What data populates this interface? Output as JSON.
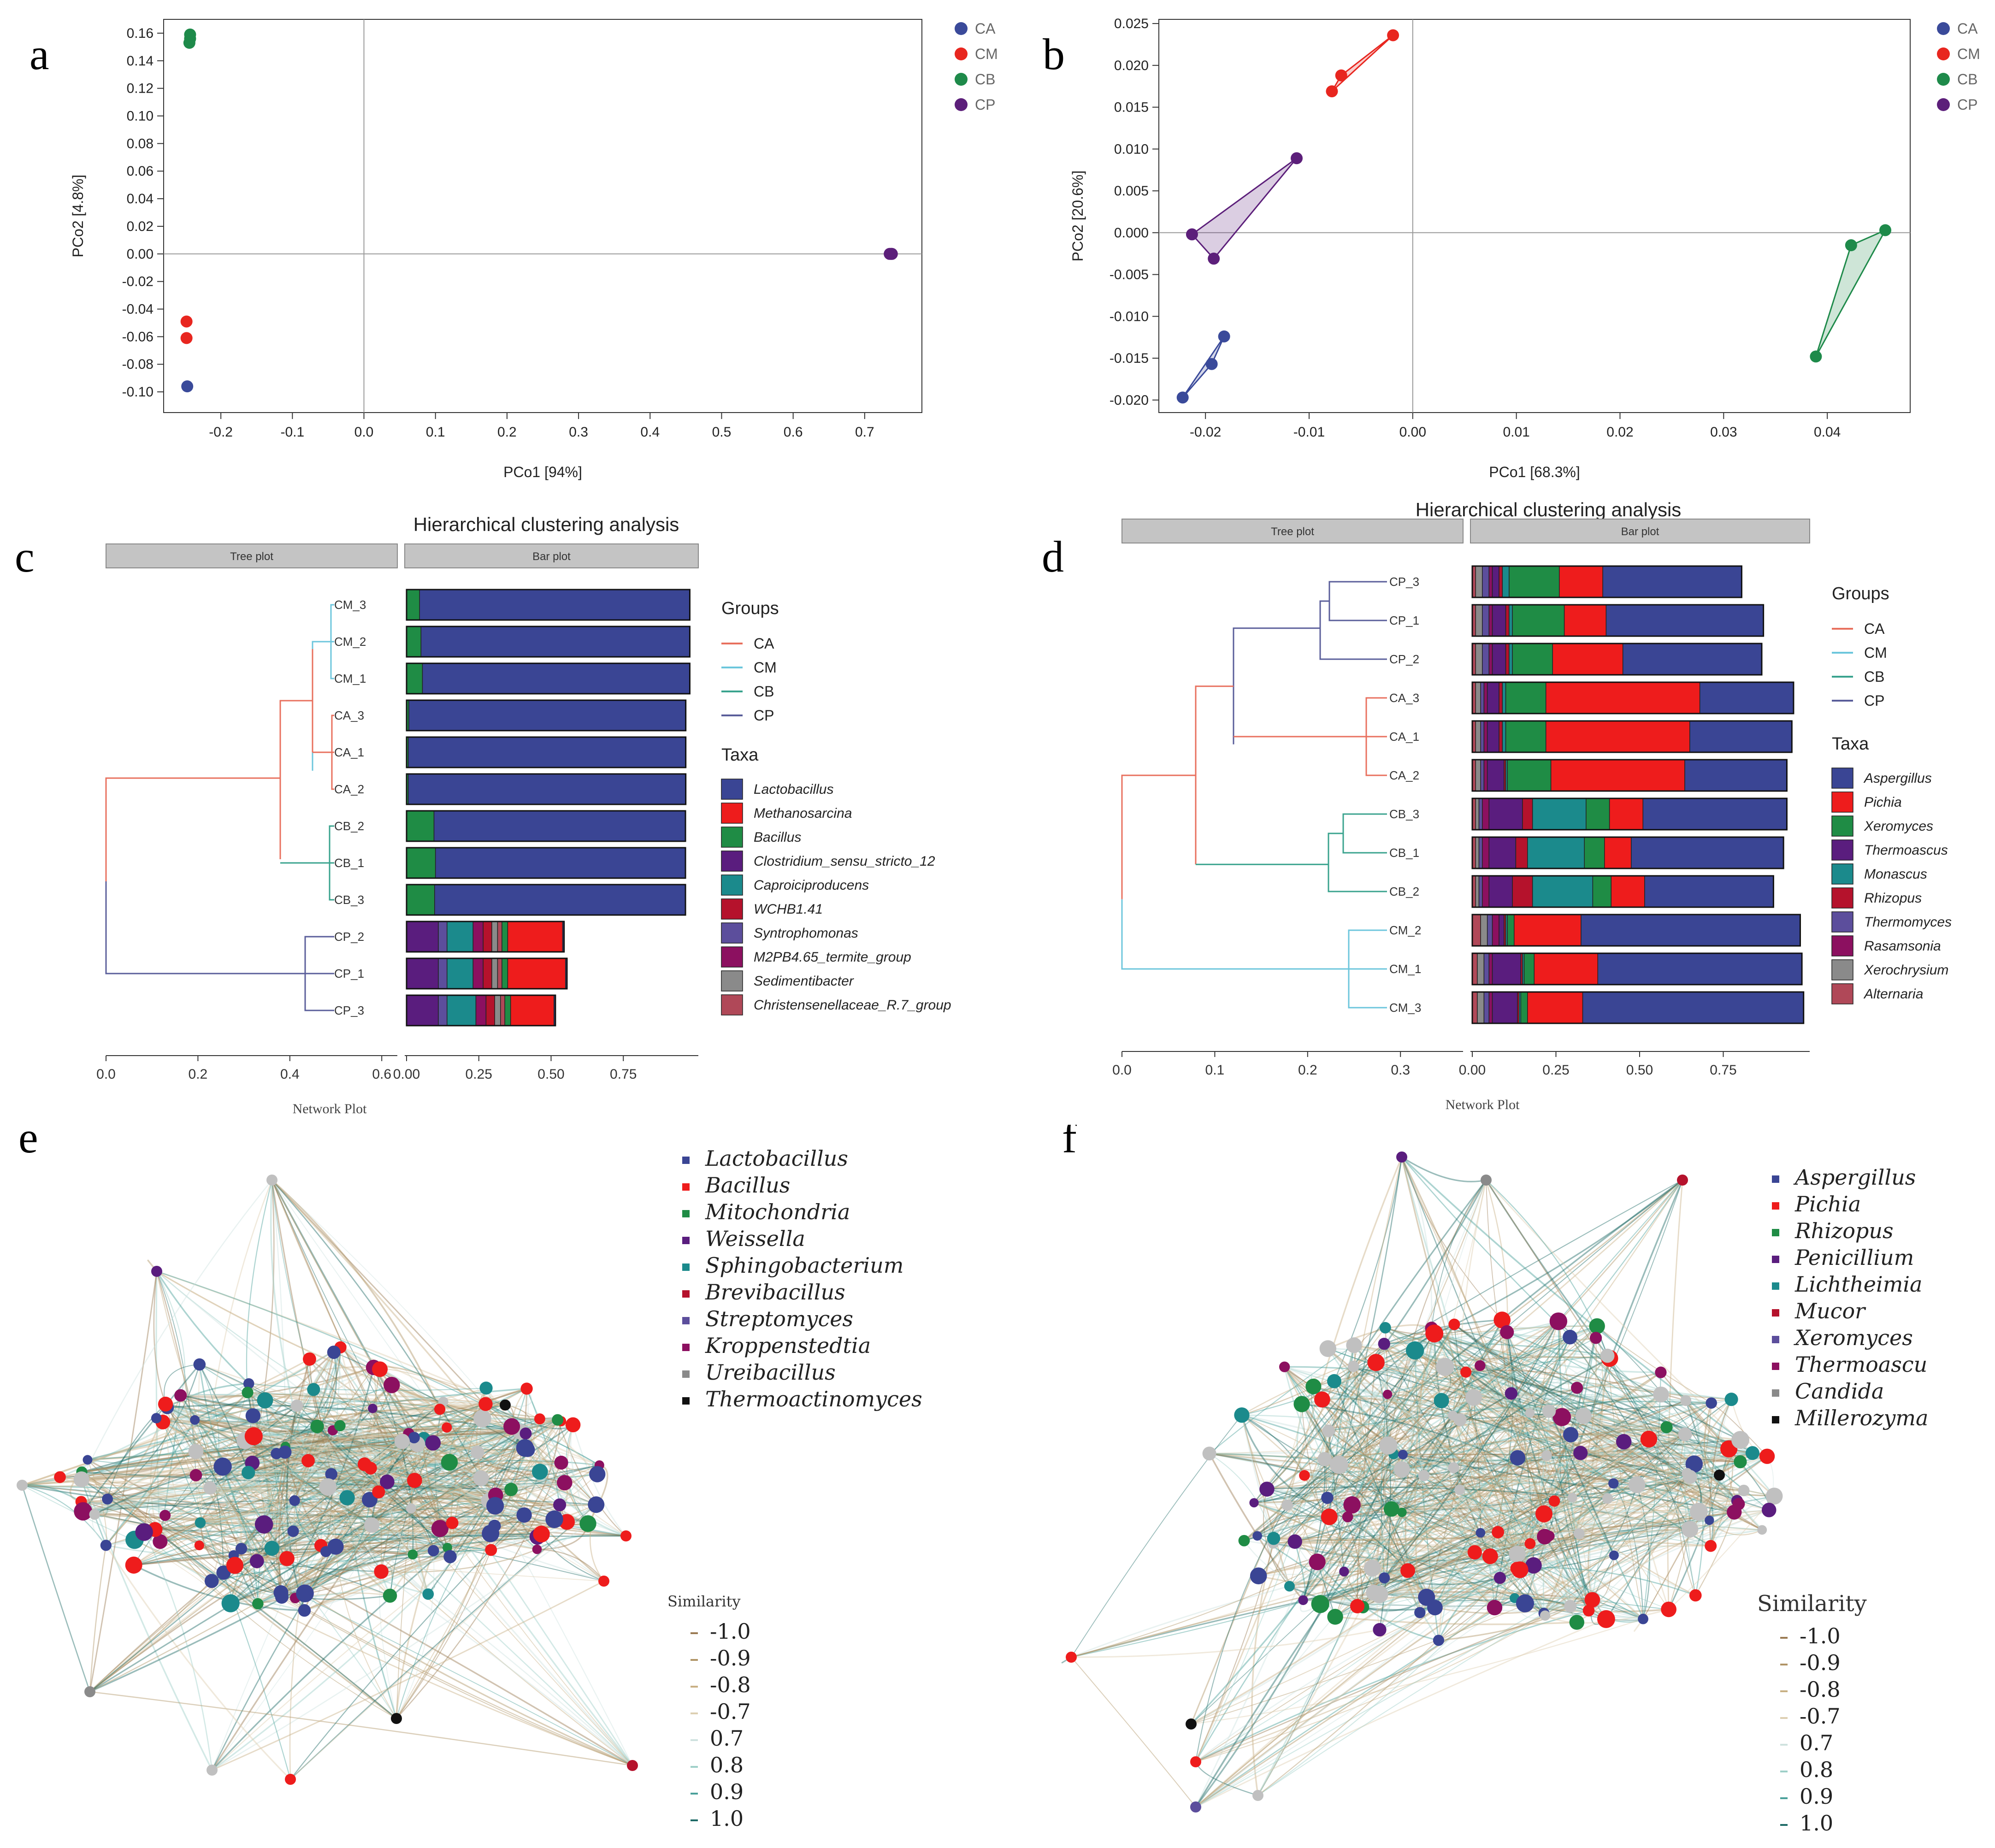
{
  "panels": {
    "a": {
      "letter": "a",
      "xlabel": "PCo1 [94%]",
      "ylabel": "PCo2 [4.8%]"
    },
    "b": {
      "letter": "b",
      "xlabel": "PCo1 [68.3%]",
      "ylabel": "PCo2 [20.6%]"
    },
    "c": {
      "letter": "c",
      "title": "Hierarchical clustering analysis",
      "tree_header": "Tree plot",
      "bar_header": "Bar plot",
      "network_label": "Network Plot",
      "groups_title": "Groups",
      "taxa_title": "Taxa"
    },
    "d": {
      "letter": "d",
      "title": "Hierarchical clustering analysis",
      "tree_header": "Tree plot",
      "bar_header": "Bar plot",
      "network_label": "Network Plot",
      "groups_title": "Groups",
      "taxa_title": "Taxa"
    },
    "e": {
      "letter": "e",
      "similarity_title": "Similarity"
    },
    "f": {
      "letter": "f",
      "similarity_title": "Similarity"
    }
  },
  "colors": {
    "CA": "#3a4a9a",
    "CM": "#e8261f",
    "CB": "#1e8a4a",
    "CP": "#5c1f7a",
    "tree_CA": "#e8705e",
    "tree_CM": "#6cc6dc",
    "tree_CB": "#3aa38e",
    "tree_CP": "#5a5e9a"
  },
  "chart_data": [
    {
      "id": "a",
      "type": "scatter",
      "xlabel": "PCo1 [94%]",
      "ylabel": "PCo2 [4.8%]",
      "xlim": [
        -0.28,
        0.78
      ],
      "ylim": [
        -0.115,
        0.17
      ],
      "xticks": [
        "-0.2",
        "-0.1",
        "0.0",
        "0.1",
        "0.2",
        "0.3",
        "0.4",
        "0.5",
        "0.6",
        "0.7"
      ],
      "yticks": [
        "0.16",
        "0.14",
        "0.12",
        "0.10",
        "0.08",
        "0.06",
        "0.04",
        "0.02",
        "0.00",
        "-0.02",
        "-0.04",
        "-0.06",
        "-0.08",
        "-0.10"
      ],
      "legend": [
        "CA",
        "CM",
        "CB",
        "CP"
      ],
      "series": [
        {
          "name": "CA",
          "points": [
            [
              -0.247,
              -0.096
            ]
          ]
        },
        {
          "name": "CM",
          "points": [
            [
              -0.248,
              -0.049
            ],
            [
              -0.248,
              -0.061
            ]
          ]
        },
        {
          "name": "CB",
          "points": [
            [
              -0.243,
              0.159
            ],
            [
              -0.243,
              0.156
            ],
            [
              -0.244,
              0.153
            ]
          ]
        },
        {
          "name": "CP",
          "points": [
            [
              0.737,
              0.0
            ],
            [
              0.735,
              0.0
            ],
            [
              0.738,
              0.0
            ]
          ]
        }
      ]
    },
    {
      "id": "b",
      "type": "scatter",
      "xlabel": "PCo1 [68.3%]",
      "ylabel": "PCo2 [20.6%]",
      "xlim": [
        -0.0245,
        0.048
      ],
      "ylim": [
        -0.0215,
        0.0255
      ],
      "xticks": [
        "-0.02",
        "-0.01",
        "0.00",
        "0.01",
        "0.02",
        "0.03",
        "0.04"
      ],
      "yticks": [
        "0.025",
        "0.020",
        "0.015",
        "0.010",
        "0.005",
        "0.000",
        "-0.005",
        "-0.010",
        "-0.015",
        "-0.020"
      ],
      "legend": [
        "CA",
        "CM",
        "CB",
        "CP"
      ],
      "series": [
        {
          "name": "CA",
          "points": [
            [
              -0.0222,
              -0.0197
            ],
            [
              -0.0194,
              -0.0157
            ],
            [
              -0.0182,
              -0.0124
            ]
          ]
        },
        {
          "name": "CM",
          "points": [
            [
              -0.0078,
              0.0169
            ],
            [
              -0.0069,
              0.0188
            ],
            [
              -0.0019,
              0.0236
            ]
          ]
        },
        {
          "name": "CB",
          "points": [
            [
              0.0389,
              -0.0148
            ],
            [
              0.0423,
              -0.0015
            ],
            [
              0.0456,
              0.0003
            ]
          ]
        },
        {
          "name": "CP",
          "points": [
            [
              -0.0213,
              -0.0002
            ],
            [
              -0.0192,
              -0.0031
            ],
            [
              -0.0112,
              0.0089
            ]
          ]
        }
      ]
    },
    {
      "id": "c",
      "type": "bar",
      "title": "Hierarchical clustering analysis",
      "tree_ticks": [
        "0.0",
        "0.2",
        "0.4",
        "0.6"
      ],
      "bar_ticks": [
        "0.00",
        "0.25",
        "0.50",
        "0.75"
      ],
      "groups": [
        "CA",
        "CM",
        "CB",
        "CP"
      ],
      "taxa": [
        "Lactobacillus",
        "Methanosarcina",
        "Bacillus",
        "Clostridium_sensu_stricto_12",
        "Caproiciproducens",
        "WCHB1.41",
        "Syntrophomonas",
        "M2PB4.65_termite_group",
        "Sedimentibacter",
        "Christensenellaceae_R.7_group"
      ],
      "taxa_colors": [
        "#3a4594",
        "#ee1c1c",
        "#1f8c45",
        "#5a1d7e",
        "#1b8a8c",
        "#b5122c",
        "#5c4e9c",
        "#8c1060",
        "#8a8a8a",
        "#b04858"
      ],
      "samples": [
        {
          "name": "CM_3",
          "group": "CM",
          "values": [
            0.935,
            0,
            0.045,
            0,
            0,
            0,
            0,
            0,
            0,
            0
          ]
        },
        {
          "name": "CM_2",
          "group": "CM",
          "values": [
            0.93,
            0,
            0.05,
            0,
            0,
            0,
            0,
            0,
            0,
            0
          ]
        },
        {
          "name": "CM_1",
          "group": "CM",
          "values": [
            0.925,
            0,
            0.055,
            0,
            0,
            0,
            0,
            0,
            0,
            0
          ]
        },
        {
          "name": "CA_3",
          "group": "CA",
          "values": [
            0.958,
            0,
            0.008,
            0,
            0,
            0,
            0,
            0,
            0,
            0
          ]
        },
        {
          "name": "CA_1",
          "group": "CA",
          "values": [
            0.96,
            0,
            0.006,
            0,
            0,
            0,
            0,
            0,
            0,
            0
          ]
        },
        {
          "name": "CA_2",
          "group": "CA",
          "values": [
            0.96,
            0,
            0.006,
            0,
            0,
            0,
            0,
            0,
            0,
            0
          ]
        },
        {
          "name": "CB_2",
          "group": "CB",
          "values": [
            0.87,
            0,
            0.095,
            0,
            0,
            0,
            0,
            0,
            0,
            0
          ]
        },
        {
          "name": "CB_1",
          "group": "CB",
          "values": [
            0.865,
            0,
            0.1,
            0,
            0,
            0,
            0,
            0,
            0,
            0
          ]
        },
        {
          "name": "CB_3",
          "group": "CB",
          "values": [
            0.868,
            0,
            0.097,
            0,
            0,
            0,
            0,
            0,
            0,
            0
          ]
        },
        {
          "name": "CP_2",
          "group": "CP",
          "values": [
            0.005,
            0.19,
            0.02,
            0.11,
            0.09,
            0.03,
            0.03,
            0.035,
            0.02,
            0.015
          ]
        },
        {
          "name": "CP_1",
          "group": "CP",
          "values": [
            0.005,
            0.2,
            0.02,
            0.11,
            0.09,
            0.03,
            0.03,
            0.035,
            0.02,
            0.015
          ]
        },
        {
          "name": "CP_3",
          "group": "CP",
          "values": [
            0.005,
            0.15,
            0.02,
            0.11,
            0.1,
            0.03,
            0.03,
            0.035,
            0.02,
            0.015
          ]
        }
      ]
    },
    {
      "id": "d",
      "type": "bar",
      "title": "Hierarchical clustering analysis",
      "tree_ticks": [
        "0.0",
        "0.1",
        "0.2",
        "0.3"
      ],
      "bar_ticks": [
        "0.00",
        "0.25",
        "0.50",
        "0.75"
      ],
      "groups": [
        "CA",
        "CM",
        "CB",
        "CP"
      ],
      "taxa": [
        "Aspergillus",
        "Pichia",
        "Xeromyces",
        "Thermoascus",
        "Monascus",
        "Rhizopus",
        "Thermomyces",
        "Rasamsonia",
        "Xerochrysium",
        "Alternaria"
      ],
      "taxa_colors": [
        "#3a4594",
        "#ee1c1c",
        "#1f8c45",
        "#5a1d7e",
        "#1b8a8c",
        "#b5122c",
        "#5c4e9c",
        "#8c1060",
        "#8a8a8a",
        "#b04858"
      ],
      "samples": [
        {
          "name": "CP_3",
          "group": "CP",
          "values": [
            0.415,
            0.13,
            0.15,
            0.02,
            0.02,
            0.01,
            0.02,
            0.01,
            0.02,
            0.01
          ]
        },
        {
          "name": "CP_1",
          "group": "CP",
          "values": [
            0.47,
            0.125,
            0.155,
            0.04,
            0.01,
            0.01,
            0.02,
            0.01,
            0.02,
            0.01
          ]
        },
        {
          "name": "CP_2",
          "group": "CP",
          "values": [
            0.415,
            0.21,
            0.12,
            0.04,
            0.01,
            0.01,
            0.02,
            0.01,
            0.02,
            0.01
          ]
        },
        {
          "name": "CA_3",
          "group": "CA",
          "values": [
            0.28,
            0.46,
            0.12,
            0.035,
            0.01,
            0.01,
            0.01,
            0.01,
            0.015,
            0.01
          ]
        },
        {
          "name": "CA_1",
          "group": "CA",
          "values": [
            0.305,
            0.43,
            0.12,
            0.035,
            0.01,
            0.01,
            0.01,
            0.01,
            0.015,
            0.01
          ]
        },
        {
          "name": "CA_2",
          "group": "CA",
          "values": [
            0.305,
            0.4,
            0.13,
            0.05,
            0.005,
            0.005,
            0.01,
            0.01,
            0.015,
            0.01
          ]
        },
        {
          "name": "CB_3",
          "group": "CB",
          "values": [
            0.43,
            0.1,
            0.07,
            0.1,
            0.16,
            0.03,
            0.01,
            0.02,
            0.01,
            0.01
          ]
        },
        {
          "name": "CB_1",
          "group": "CB",
          "values": [
            0.455,
            0.08,
            0.06,
            0.08,
            0.17,
            0.035,
            0.01,
            0.02,
            0.01,
            0.01
          ]
        },
        {
          "name": "CB_2",
          "group": "CB",
          "values": [
            0.385,
            0.1,
            0.055,
            0.07,
            0.18,
            0.06,
            0.01,
            0.02,
            0.01,
            0.01
          ]
        },
        {
          "name": "CM_2",
          "group": "CM",
          "values": [
            0.655,
            0.2,
            0.02,
            0.015,
            0.005,
            0.005,
            0.015,
            0.02,
            0.02,
            0.025
          ]
        },
        {
          "name": "CM_1",
          "group": "CM",
          "values": [
            0.61,
            0.19,
            0.03,
            0.085,
            0.005,
            0.005,
            0.015,
            0.01,
            0.02,
            0.015
          ]
        },
        {
          "name": "CM_3",
          "group": "CM",
          "values": [
            0.66,
            0.165,
            0.02,
            0.075,
            0.005,
            0.005,
            0.015,
            0.01,
            0.02,
            0.015
          ]
        }
      ]
    }
  ],
  "network_e": {
    "legend": [
      "Lactobacillus",
      "Bacillus",
      "Mitochondria",
      "Weissella",
      "Sphingobacterium",
      "Brevibacillus",
      "Streptomyces",
      "Kroppenstedtia",
      "Ureibacillus",
      "Thermoactinomyces"
    ],
    "legend_colors": [
      "#3a4594",
      "#ee1c1c",
      "#1f8c45",
      "#5a1d7e",
      "#1b8a8c",
      "#b5122c",
      "#5c4e9c",
      "#8c1060",
      "#8a8a8a",
      "#111111"
    ],
    "similarity": [
      "-1.0",
      "-0.9",
      "-0.8",
      "-0.7",
      "0.7",
      "0.8",
      "0.9",
      "1.0"
    ]
  },
  "network_f": {
    "legend": [
      "Aspergillus",
      "Pichia",
      "Rhizopus",
      "Penicillium",
      "Lichtheimia",
      "Mucor",
      "Xeromyces",
      "Thermoascu",
      "Candida",
      "Millerozyma"
    ],
    "legend_colors": [
      "#3a4594",
      "#ee1c1c",
      "#1f8c45",
      "#5a1d7e",
      "#1b8a8c",
      "#b5122c",
      "#5c4e9c",
      "#8c1060",
      "#8a8a8a",
      "#111111"
    ],
    "similarity": [
      "-1.0",
      "-0.9",
      "-0.8",
      "-0.7",
      "0.7",
      "0.8",
      "0.9",
      "1.0"
    ]
  },
  "similarity_colors": [
    "#9a7a52",
    "#b09466",
    "#c8b084",
    "#ddcfb2",
    "#cfe2df",
    "#9ecfc8",
    "#4aa09a",
    "#1e6a66"
  ]
}
